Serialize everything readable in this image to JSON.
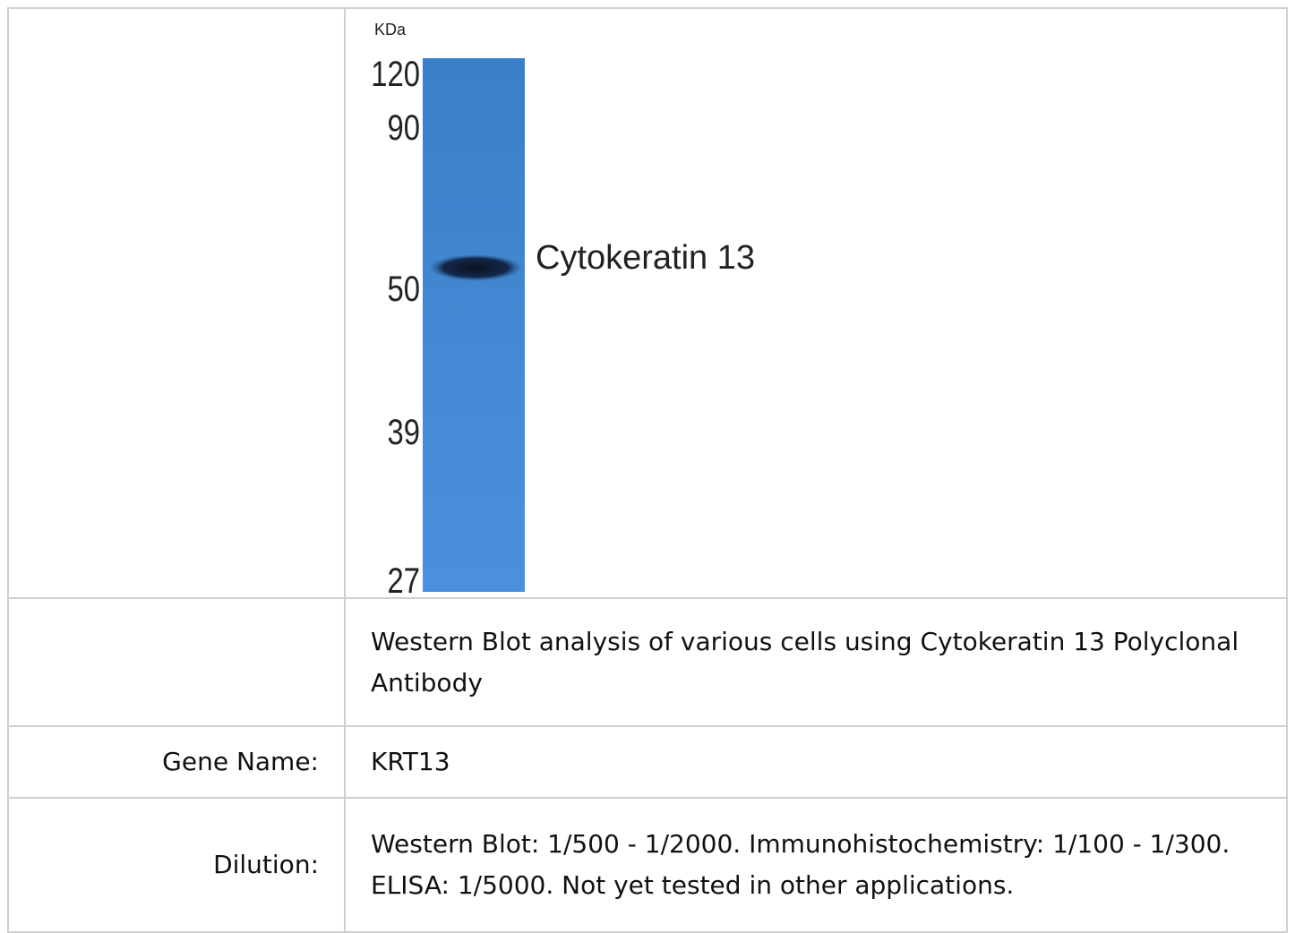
{
  "blot": {
    "unit": "KDa",
    "markers": [
      "120",
      "90",
      "50",
      "39",
      "27"
    ],
    "band_label": "Cytokeratin 13"
  },
  "table": {
    "rows": [
      [
        "",
        "Western Blot analysis of various cells using Cytokeratin 13 Polyclonal Antibody"
      ],
      [
        "Gene Name:",
        "KRT13"
      ],
      [
        "Dilution:",
        "Western Blot: 1/500 - 1/2000. Immunohistochemistry: 1/100 - 1/300. ELISA: 1/5000. Not yet tested in other applications."
      ]
    ]
  }
}
